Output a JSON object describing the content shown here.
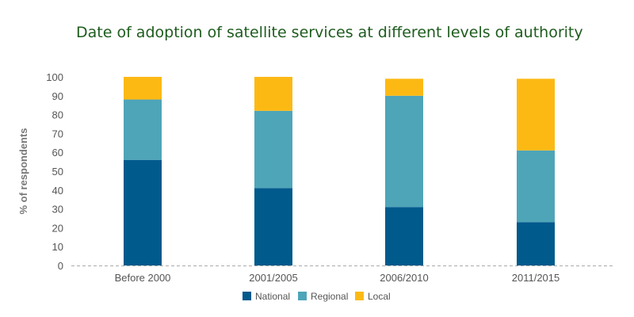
{
  "colors": {
    "National": "#005a8c",
    "Regional": "#4ea5b8",
    "Local": "#fdb913",
    "title": "#1e5c1e",
    "axis": "#aaaaaa"
  },
  "chart_data": {
    "type": "bar",
    "stacked": true,
    "title": "Date of adoption of satellite services at different levels of authority",
    "xlabel": "",
    "ylabel": "% of respondents",
    "ylim": [
      0,
      100
    ],
    "yticks": [
      0,
      10,
      20,
      30,
      40,
      50,
      60,
      70,
      80,
      90,
      100
    ],
    "grid": false,
    "legend_position": "bottom",
    "categories": [
      "Before 2000",
      "2001/2005",
      "2006/2010",
      "2011/2015"
    ],
    "series": [
      {
        "name": "National",
        "values": [
          56,
          41,
          31,
          23
        ]
      },
      {
        "name": "Regional",
        "values": [
          32,
          41,
          59,
          38
        ]
      },
      {
        "name": "Local",
        "values": [
          12,
          18,
          9,
          38
        ]
      }
    ]
  }
}
